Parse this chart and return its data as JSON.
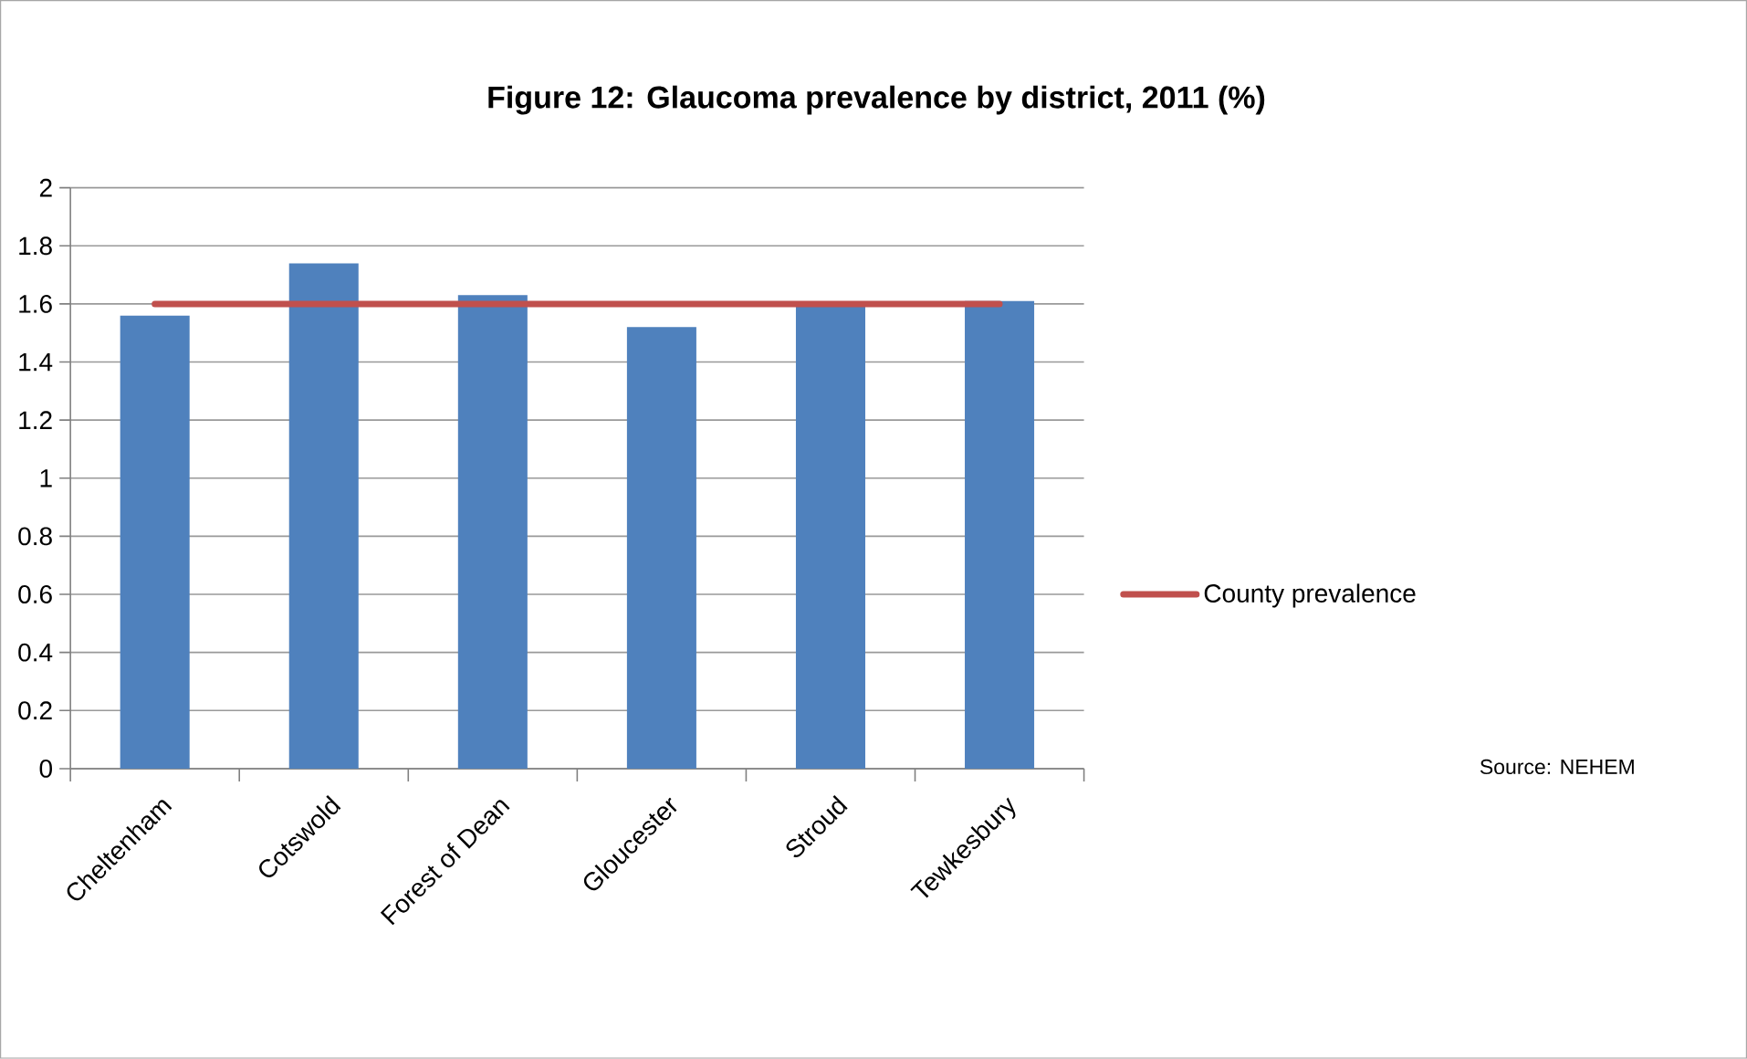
{
  "chart_data": {
    "type": "bar",
    "title": "Figure 12: Glaucoma prevalence by district, 2011 (%)",
    "categories": [
      "Cheltenham",
      "Cotswold",
      "Forest of Dean",
      "Gloucester",
      "Stroud",
      "Tewkesbury"
    ],
    "series": [
      {
        "type": "bar",
        "color": "#4f81bd",
        "values": [
          1.56,
          1.74,
          1.63,
          1.52,
          1.59,
          1.61
        ]
      },
      {
        "type": "line",
        "name": "County prevalence",
        "color": "#c0504d",
        "values": [
          1.6,
          1.6,
          1.6,
          1.6,
          1.6,
          1.6
        ]
      }
    ],
    "ylim": [
      0,
      2
    ],
    "yticks": [
      0,
      0.2,
      0.4,
      0.6,
      0.8,
      1,
      1.2,
      1.4,
      1.6,
      1.8,
      2
    ],
    "grid": "y",
    "legend": "right",
    "marker": "none",
    "annotations": [
      "Source:  NEHEM"
    ]
  }
}
